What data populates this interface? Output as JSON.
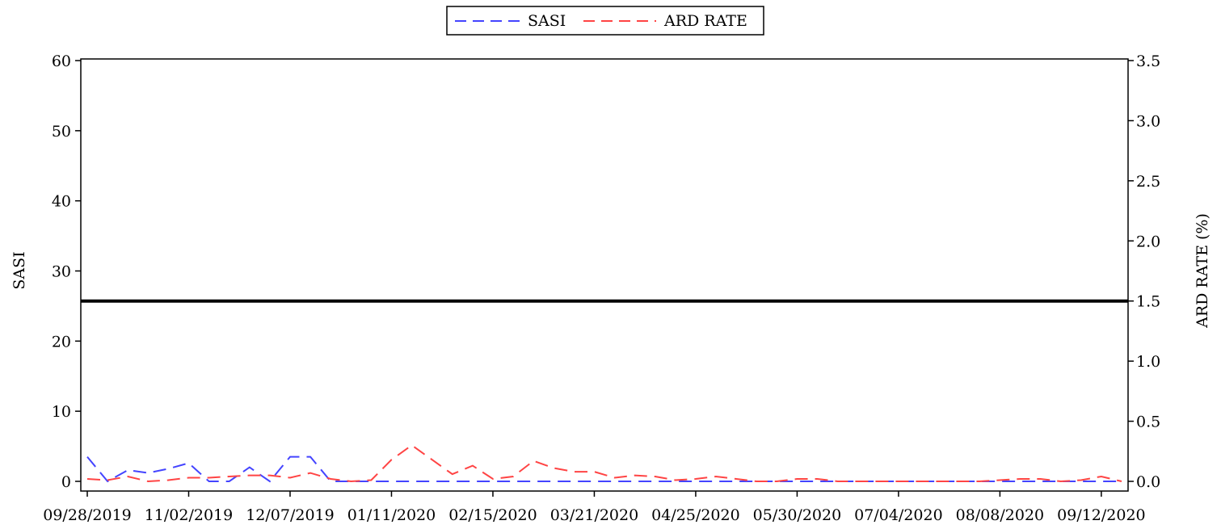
{
  "chart_data": {
    "type": "line",
    "left_axis": {
      "label": "SASI",
      "range": [
        0,
        60
      ],
      "ticks": [
        0,
        10,
        20,
        30,
        40,
        50,
        60
      ],
      "tick_labels": [
        "0",
        "10",
        "20",
        "30",
        "40",
        "50",
        "60"
      ]
    },
    "right_axis": {
      "label": "ARD RATE (%)",
      "range": [
        0,
        3.5
      ],
      "ticks": [
        0.0,
        0.5,
        1.0,
        1.5,
        2.0,
        2.5,
        3.0,
        3.5
      ],
      "tick_labels": [
        "0.0",
        "0.5",
        "1.0",
        "1.5",
        "2.0",
        "2.5",
        "3.0",
        "3.5"
      ]
    },
    "x_axis": {
      "range": [
        "2019-09-28",
        "2020-09-19"
      ],
      "ticks": [
        "2019-09-28",
        "2019-11-02",
        "2019-12-07",
        "2020-01-11",
        "2020-02-15",
        "2020-03-21",
        "2020-04-25",
        "2020-05-30",
        "2020-07-04",
        "2020-08-08",
        "2020-09-12"
      ],
      "tick_labels": [
        "09/28/2019",
        "11/02/2019",
        "12/07/2019",
        "01/11/2020",
        "02/15/2020",
        "03/21/2020",
        "04/25/2020",
        "05/30/2020",
        "07/04/2020",
        "08/08/2020",
        "09/12/2020"
      ]
    },
    "reference_line": {
      "axis": "right",
      "value": 1.5,
      "color": "#000000"
    },
    "legend": {
      "placement": "top-center",
      "entries": [
        "SASI",
        "ARD RATE"
      ]
    },
    "series": [
      {
        "name": "SASI",
        "axis": "left",
        "color": "#4444ff",
        "style": "dashed",
        "points": [
          [
            "2019-09-28",
            3.5
          ],
          [
            "2019-10-05",
            0.0
          ],
          [
            "2019-10-12",
            1.6
          ],
          [
            "2019-10-19",
            1.2
          ],
          [
            "2019-10-26",
            1.8
          ],
          [
            "2019-11-02",
            2.6
          ],
          [
            "2019-11-09",
            0.0
          ],
          [
            "2019-11-16",
            0.0
          ],
          [
            "2019-11-23",
            2.0
          ],
          [
            "2019-11-30",
            0.0
          ],
          [
            "2019-12-07",
            3.5
          ],
          [
            "2019-12-14",
            3.5
          ],
          [
            "2019-12-21",
            0.0
          ],
          [
            "2019-12-28",
            0.0
          ],
          [
            "2020-01-04",
            0.0
          ],
          [
            "2020-01-11",
            0.0
          ],
          [
            "2020-01-18",
            0.0
          ],
          [
            "2020-01-25",
            0.0
          ],
          [
            "2020-02-01",
            0.0
          ],
          [
            "2020-02-08",
            0.0
          ],
          [
            "2020-02-15",
            0.0
          ],
          [
            "2020-02-22",
            0.0
          ],
          [
            "2020-02-29",
            0.0
          ],
          [
            "2020-03-07",
            0.0
          ],
          [
            "2020-03-14",
            0.0
          ],
          [
            "2020-03-21",
            0.0
          ],
          [
            "2020-03-28",
            0.0
          ],
          [
            "2020-04-04",
            0.0
          ],
          [
            "2020-04-11",
            0.0
          ],
          [
            "2020-04-18",
            0.0
          ],
          [
            "2020-04-25",
            0.0
          ],
          [
            "2020-05-02",
            0.0
          ],
          [
            "2020-05-09",
            0.0
          ],
          [
            "2020-05-16",
            0.0
          ],
          [
            "2020-05-23",
            0.0
          ],
          [
            "2020-05-30",
            0.0
          ],
          [
            "2020-06-06",
            0.0
          ],
          [
            "2020-06-13",
            0.0
          ],
          [
            "2020-06-20",
            0.0
          ],
          [
            "2020-06-27",
            0.0
          ],
          [
            "2020-07-04",
            0.0
          ],
          [
            "2020-07-11",
            0.0
          ],
          [
            "2020-07-18",
            0.0
          ],
          [
            "2020-07-25",
            0.0
          ],
          [
            "2020-08-01",
            0.0
          ],
          [
            "2020-08-08",
            0.0
          ],
          [
            "2020-08-15",
            0.0
          ],
          [
            "2020-08-22",
            0.0
          ],
          [
            "2020-08-29",
            0.0
          ],
          [
            "2020-09-05",
            0.0
          ],
          [
            "2020-09-12",
            0.0
          ],
          [
            "2020-09-19",
            0.0
          ]
        ]
      },
      {
        "name": "ARD RATE",
        "axis": "right",
        "color": "#ff4444",
        "style": "dashed",
        "points": [
          [
            "2019-09-28",
            0.02
          ],
          [
            "2019-10-05",
            0.01
          ],
          [
            "2019-10-12",
            0.04
          ],
          [
            "2019-10-19",
            0.0
          ],
          [
            "2019-10-26",
            0.01
          ],
          [
            "2019-11-02",
            0.03
          ],
          [
            "2019-11-09",
            0.03
          ],
          [
            "2019-11-16",
            0.04
          ],
          [
            "2019-11-23",
            0.05
          ],
          [
            "2019-11-30",
            0.05
          ],
          [
            "2019-12-07",
            0.03
          ],
          [
            "2019-12-14",
            0.07
          ],
          [
            "2019-12-21",
            0.02
          ],
          [
            "2019-12-28",
            0.0
          ],
          [
            "2020-01-04",
            0.01
          ],
          [
            "2020-01-11",
            0.18
          ],
          [
            "2020-01-18",
            0.3
          ],
          [
            "2020-01-25",
            0.18
          ],
          [
            "2020-02-01",
            0.06
          ],
          [
            "2020-02-08",
            0.13
          ],
          [
            "2020-02-15",
            0.02
          ],
          [
            "2020-02-22",
            0.04
          ],
          [
            "2020-02-29",
            0.17
          ],
          [
            "2020-03-07",
            0.11
          ],
          [
            "2020-03-14",
            0.08
          ],
          [
            "2020-03-21",
            0.08
          ],
          [
            "2020-03-28",
            0.03
          ],
          [
            "2020-04-04",
            0.05
          ],
          [
            "2020-04-11",
            0.04
          ],
          [
            "2020-04-18",
            0.01
          ],
          [
            "2020-04-25",
            0.02
          ],
          [
            "2020-05-02",
            0.04
          ],
          [
            "2020-05-09",
            0.02
          ],
          [
            "2020-05-16",
            0.0
          ],
          [
            "2020-05-23",
            0.0
          ],
          [
            "2020-05-30",
            0.02
          ],
          [
            "2020-06-06",
            0.02
          ],
          [
            "2020-06-13",
            0.0
          ],
          [
            "2020-06-20",
            0.0
          ],
          [
            "2020-06-27",
            0.0
          ],
          [
            "2020-07-04",
            0.0
          ],
          [
            "2020-07-11",
            0.0
          ],
          [
            "2020-07-18",
            0.0
          ],
          [
            "2020-07-25",
            0.0
          ],
          [
            "2020-08-01",
            0.0
          ],
          [
            "2020-08-08",
            0.01
          ],
          [
            "2020-08-15",
            0.02
          ],
          [
            "2020-08-22",
            0.02
          ],
          [
            "2020-08-29",
            0.0
          ],
          [
            "2020-09-05",
            0.01
          ],
          [
            "2020-09-12",
            0.04
          ],
          [
            "2020-09-19",
            0.0
          ]
        ]
      }
    ]
  }
}
